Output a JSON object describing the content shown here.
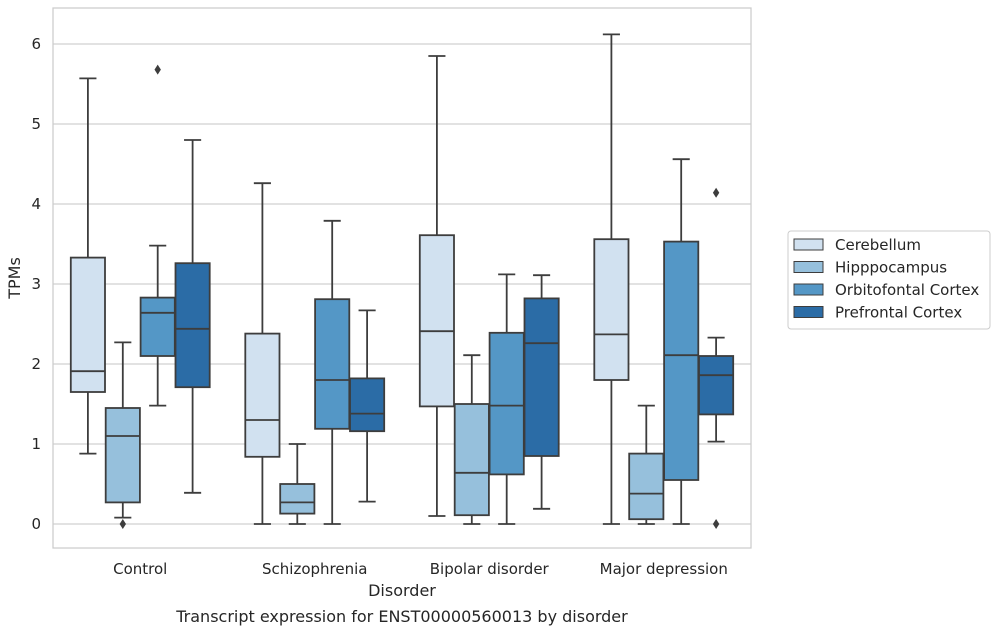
{
  "chart_data": {
    "type": "box",
    "title": "",
    "caption": "Transcript expression for ENST00000560013 by disorder",
    "xlabel": "Disorder",
    "ylabel": "TPMs",
    "ylim": [
      -0.3,
      6.45
    ],
    "yticks": [
      0,
      1,
      2,
      3,
      4,
      5,
      6
    ],
    "grid": "horizontal",
    "legend_position": "right",
    "categories": [
      "Control",
      "Schizophrenia",
      "Bipolar disorder",
      "Major depression"
    ],
    "series": [
      {
        "name": "Cerebellum",
        "color": "#d1e1f0",
        "boxes": [
          {
            "whisker_low": 0.88,
            "q1": 1.65,
            "median": 1.91,
            "q3": 3.33,
            "whisker_high": 5.57,
            "outliers": []
          },
          {
            "whisker_low": 0.0,
            "q1": 0.84,
            "median": 1.3,
            "q3": 2.38,
            "whisker_high": 4.26,
            "outliers": []
          },
          {
            "whisker_low": 0.1,
            "q1": 1.47,
            "median": 2.41,
            "q3": 3.61,
            "whisker_high": 5.85,
            "outliers": []
          },
          {
            "whisker_low": 0.0,
            "q1": 1.8,
            "median": 2.37,
            "q3": 3.56,
            "whisker_high": 6.12,
            "outliers": []
          }
        ]
      },
      {
        "name": "Hipppocampus",
        "color": "#96c0dc",
        "boxes": [
          {
            "whisker_low": 0.08,
            "q1": 0.27,
            "median": 1.1,
            "q3": 1.45,
            "whisker_high": 2.27,
            "outliers": [
              0.0
            ]
          },
          {
            "whisker_low": 0.0,
            "q1": 0.13,
            "median": 0.27,
            "q3": 0.5,
            "whisker_high": 1.0,
            "outliers": []
          },
          {
            "whisker_low": 0.0,
            "q1": 0.11,
            "median": 0.64,
            "q3": 1.5,
            "whisker_high": 2.11,
            "outliers": []
          },
          {
            "whisker_low": 0.0,
            "q1": 0.06,
            "median": 0.38,
            "q3": 0.88,
            "whisker_high": 1.48,
            "outliers": []
          }
        ]
      },
      {
        "name": "Orbitofontal Cortex",
        "color": "#5497c6",
        "boxes": [
          {
            "whisker_low": 1.48,
            "q1": 2.1,
            "median": 2.64,
            "q3": 2.83,
            "whisker_high": 3.48,
            "outliers": [
              5.68
            ]
          },
          {
            "whisker_low": 0.0,
            "q1": 1.19,
            "median": 1.8,
            "q3": 2.81,
            "whisker_high": 3.79,
            "outliers": []
          },
          {
            "whisker_low": 0.0,
            "q1": 0.62,
            "median": 1.48,
            "q3": 2.39,
            "whisker_high": 3.12,
            "outliers": []
          },
          {
            "whisker_low": 0.0,
            "q1": 0.55,
            "median": 2.11,
            "q3": 3.53,
            "whisker_high": 4.56,
            "outliers": []
          }
        ]
      },
      {
        "name": "Prefrontal Cortex",
        "color": "#2b6ca6",
        "boxes": [
          {
            "whisker_low": 0.39,
            "q1": 1.71,
            "median": 2.44,
            "q3": 3.26,
            "whisker_high": 4.8,
            "outliers": []
          },
          {
            "whisker_low": 0.28,
            "q1": 1.16,
            "median": 1.38,
            "q3": 1.82,
            "whisker_high": 2.67,
            "outliers": []
          },
          {
            "whisker_low": 0.19,
            "q1": 0.85,
            "median": 2.26,
            "q3": 2.82,
            "whisker_high": 3.11,
            "outliers": []
          },
          {
            "whisker_low": 1.03,
            "q1": 1.37,
            "median": 1.86,
            "q3": 2.1,
            "whisker_high": 2.33,
            "outliers": [
              4.14,
              0.0
            ]
          }
        ]
      }
    ]
  }
}
